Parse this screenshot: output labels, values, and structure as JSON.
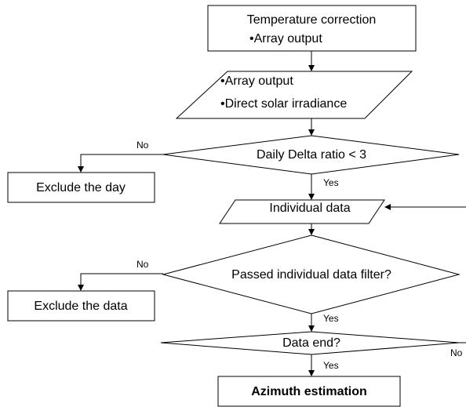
{
  "nodes": [
    {
      "lines": [
        "Temperature correction",
        "•Array output"
      ]
    },
    {
      "lines": [
        "•Array output",
        "•Direct solar irradiance"
      ]
    },
    {
      "lines": [
        "Daily Delta ratio < 3"
      ]
    },
    {
      "lines": [
        "Exclude the day"
      ]
    },
    {
      "lines": [
        "Individual data"
      ]
    },
    {
      "lines": [
        "Passed individual data filter?"
      ]
    },
    {
      "lines": [
        "Exclude the data"
      ]
    },
    {
      "lines": [
        "Data end?"
      ]
    },
    {
      "lines": [
        "Azimuth estimation"
      ]
    }
  ],
  "edges": [
    {
      "label": "No"
    },
    {
      "label": "Yes"
    },
    {
      "label": "No"
    },
    {
      "label": "Yes"
    },
    {
      "label": "Yes"
    },
    {
      "label": "No"
    }
  ]
}
